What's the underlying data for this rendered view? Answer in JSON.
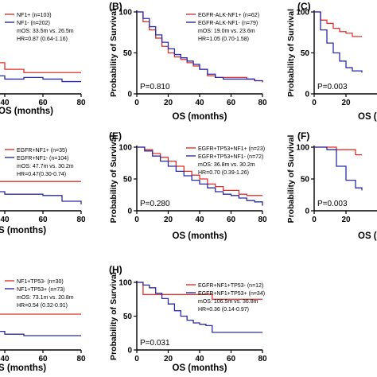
{
  "colors": {
    "red": "#e0302b",
    "blue": "#2b2ba8",
    "axis": "#000000"
  },
  "chart_data": [
    {
      "id": "left-top",
      "type": "line",
      "xlabel": "OS (months)",
      "ylabel": "",
      "xlim": [
        0,
        80
      ],
      "ylim": [
        0,
        100
      ],
      "xticks": [
        "40",
        "60",
        "80"
      ],
      "yticks": [],
      "legend_position": "top-right",
      "legend_lines": [
        "NF1+ (n=103)",
        "NF1- (n=202)"
      ],
      "stats_lines": [
        "mOS: 33.5m vs. 26.5m",
        "HR=0.87 (0.64-1.16)"
      ],
      "p_value": "",
      "series": [
        {
          "name": "NF1+ (n=103)",
          "color": "red",
          "x": [
            0,
            18,
            22,
            26,
            30,
            40,
            50,
            60,
            70,
            80
          ],
          "y": [
            100,
            60,
            50,
            44,
            38,
            30,
            26,
            26,
            26,
            26
          ]
        },
        {
          "name": "NF1- (n=202)",
          "color": "blue",
          "x": [
            0,
            18,
            22,
            26,
            30,
            40,
            50,
            60,
            70,
            80
          ],
          "y": [
            100,
            48,
            36,
            28,
            22,
            18,
            20,
            18,
            15,
            15
          ]
        }
      ]
    },
    {
      "id": "B",
      "panel_label": "(B)",
      "type": "line",
      "xlabel": "OS (months)",
      "ylabel": "Probability of Survival",
      "xlim": [
        0,
        80
      ],
      "ylim": [
        0,
        100
      ],
      "xticks": [
        "0",
        "20",
        "40",
        "60",
        "80"
      ],
      "yticks": [
        "0",
        "50",
        "100"
      ],
      "legend_position": "top-right",
      "legend_lines": [
        "EGFR-ALK-NF1+ (n=62)",
        "EGFR-ALK-NF1- (n=79)"
      ],
      "stats_lines": [
        "mOS: 19.0m vs. 23.6m",
        "HR=1.05 (0.70-1.58)"
      ],
      "p_value": "P=0.810",
      "series": [
        {
          "name": "EGFR-ALK-NF1+ (n=62)",
          "color": "red",
          "x": [
            0,
            4,
            8,
            12,
            16,
            20,
            24,
            28,
            32,
            36,
            40,
            45,
            50,
            55,
            60,
            65,
            70,
            75,
            80
          ],
          "y": [
            100,
            88,
            78,
            68,
            58,
            50,
            45,
            42,
            38,
            34,
            30,
            22,
            20,
            20,
            20,
            20,
            18,
            16,
            14
          ]
        },
        {
          "name": "EGFR-ALK-NF1- (n=79)",
          "color": "blue",
          "x": [
            0,
            4,
            8,
            12,
            16,
            20,
            24,
            28,
            32,
            36,
            40,
            45,
            50,
            55,
            60,
            65,
            70,
            75,
            80
          ],
          "y": [
            100,
            92,
            82,
            72,
            63,
            55,
            48,
            44,
            40,
            36,
            30,
            24,
            20,
            18,
            18,
            18,
            18,
            16,
            15
          ]
        }
      ]
    },
    {
      "id": "C",
      "panel_label": "(C)",
      "type": "line",
      "xlabel": "OS (",
      "ylabel": "Probability of Survival",
      "xlim": [
        0,
        80
      ],
      "ylim": [
        0,
        100
      ],
      "xticks": [
        "0",
        "20"
      ],
      "yticks": [
        "0",
        "50",
        "100"
      ],
      "p_value": "P=0.003",
      "series": [
        {
          "name": "",
          "color": "red",
          "x": [
            0,
            4,
            8,
            12,
            16,
            20,
            24,
            30
          ],
          "y": [
            100,
            90,
            86,
            80,
            76,
            74,
            70,
            70
          ]
        },
        {
          "name": "",
          "color": "blue",
          "x": [
            0,
            4,
            8,
            12,
            16,
            20,
            24,
            30
          ],
          "y": [
            100,
            78,
            62,
            50,
            40,
            32,
            28,
            26
          ]
        }
      ]
    },
    {
      "id": "left-middle",
      "type": "line",
      "xlabel": "S (months)",
      "ylabel": "",
      "xlim": [
        0,
        80
      ],
      "ylim": [
        0,
        100
      ],
      "xticks": [
        "40",
        "60",
        "80"
      ],
      "yticks": [],
      "legend_position": "top-right",
      "legend_lines": [
        "EGFR+NF1+ (n=35)",
        "EGFR+NF1- (n=104)"
      ],
      "stats_lines": [
        "mOS: 47.7m vs. 30.2m",
        "HR=0.47(0.30-0.74)"
      ],
      "p_value": "",
      "series": [
        {
          "name": "EGFR+NF1+ (n=35)",
          "color": "red",
          "x": [
            0,
            20,
            24,
            30,
            34,
            40,
            50,
            60,
            70,
            80
          ],
          "y": [
            100,
            70,
            62,
            54,
            46,
            46,
            46,
            46,
            46,
            46
          ]
        },
        {
          "name": "EGFR+NF1- (n=104)",
          "color": "blue",
          "x": [
            0,
            20,
            24,
            30,
            34,
            40,
            50,
            60,
            70,
            80
          ],
          "y": [
            100,
            52,
            42,
            36,
            30,
            26,
            26,
            24,
            15,
            10
          ]
        }
      ]
    },
    {
      "id": "E",
      "panel_label": "(E)",
      "type": "line",
      "xlabel": "OS (months)",
      "ylabel": "Probability of Survival",
      "xlim": [
        0,
        80
      ],
      "ylim": [
        0,
        100
      ],
      "xticks": [
        "0",
        "20",
        "40",
        "60",
        "80"
      ],
      "yticks": [
        "0",
        "50",
        "100"
      ],
      "legend_position": "top-right",
      "legend_lines": [
        "EGFR+TP53+NF1+ (n=23)",
        "EGFR+TP53+NF1- (n=72)"
      ],
      "stats_lines": [
        "mOS: 36.8m vs. 30.2m",
        "HR=0.70 (0.39-1.26)"
      ],
      "p_value": "P=0.280",
      "series": [
        {
          "name": "EGFR+TP53+NF1+ (n=23)",
          "color": "red",
          "x": [
            0,
            5,
            10,
            15,
            20,
            25,
            30,
            35,
            40,
            45,
            50,
            55,
            60,
            65,
            70,
            75,
            80
          ],
          "y": [
            100,
            96,
            90,
            84,
            78,
            70,
            62,
            56,
            50,
            42,
            38,
            32,
            32,
            26,
            24,
            24,
            24
          ]
        },
        {
          "name": "EGFR+TP53+NF1- (n=72)",
          "color": "blue",
          "x": [
            0,
            5,
            10,
            15,
            20,
            25,
            30,
            35,
            40,
            45,
            50,
            55,
            60,
            65,
            70,
            75,
            80
          ],
          "y": [
            100,
            94,
            86,
            78,
            70,
            62,
            55,
            48,
            42,
            36,
            30,
            26,
            24,
            20,
            16,
            14,
            8
          ]
        }
      ]
    },
    {
      "id": "F",
      "panel_label": "(F)",
      "type": "line",
      "xlabel": "OS (",
      "ylabel": "Probability of Survival",
      "xlim": [
        0,
        80
      ],
      "ylim": [
        0,
        100
      ],
      "xticks": [
        "0",
        "20"
      ],
      "yticks": [
        "0",
        "50",
        "100"
      ],
      "p_value": "P=0.003",
      "series": [
        {
          "name": "",
          "color": "red",
          "x": [
            0,
            8,
            14,
            20,
            26,
            30
          ],
          "y": [
            100,
            100,
            96,
            96,
            88,
            88
          ]
        },
        {
          "name": "",
          "color": "blue",
          "x": [
            0,
            8,
            14,
            20,
            26,
            30
          ],
          "y": [
            100,
            96,
            70,
            48,
            36,
            32
          ]
        }
      ]
    },
    {
      "id": "left-bottom",
      "type": "line",
      "xlabel": "S (months)",
      "ylabel": "",
      "xlim": [
        0,
        80
      ],
      "ylim": [
        0,
        100
      ],
      "xticks": [
        "40",
        "60",
        "80"
      ],
      "yticks": [],
      "legend_position": "top-right",
      "legend_lines": [
        "NF1+TP53- (n=30)",
        "NF1+TP53+ (n=73)"
      ],
      "stats_lines": [
        "mOS: 73.1m vs. 20.8m",
        "HR=0.54 (0.32-0.91)"
      ],
      "p_value": "",
      "series": [
        {
          "name": "NF1+TP53- (n=30)",
          "color": "red",
          "x": [
            0,
            20,
            30,
            40,
            50,
            60,
            70,
            80
          ],
          "y": [
            100,
            60,
            50,
            50,
            50,
            50,
            50,
            50
          ]
        },
        {
          "name": "NF1+TP53+ (n=73)",
          "color": "blue",
          "x": [
            0,
            20,
            30,
            40,
            50,
            60,
            70,
            80
          ],
          "y": [
            100,
            34,
            26,
            22,
            20,
            20,
            20,
            20
          ]
        }
      ]
    },
    {
      "id": "H",
      "panel_label": "(H)",
      "type": "line",
      "xlabel": "OS (months)",
      "ylabel": "Probability of Survival",
      "xlim": [
        0,
        80
      ],
      "ylim": [
        0,
        100
      ],
      "xticks": [
        "0",
        "20",
        "40",
        "60",
        "80"
      ],
      "yticks": [
        "0",
        "50",
        "100"
      ],
      "legend_position": "top-right",
      "legend_lines": [
        "EGFR+NF1+TP53- (n=12)",
        "EGFR+NF1+TP53+ (n=34)"
      ],
      "stats_lines": [
        "mOS: 106.5m vs. 36.8m",
        "HR=0.36 (0.14-0.97)"
      ],
      "p_value": "P=0.031",
      "series": [
        {
          "name": "EGFR+NF1+TP53- (n=12)",
          "color": "red",
          "x": [
            0,
            4,
            24,
            48,
            60,
            80
          ],
          "y": [
            100,
            82,
            82,
            75,
            75,
            75
          ]
        },
        {
          "name": "EGFR+NF1+TP53+ (n=34)",
          "color": "blue",
          "x": [
            0,
            4,
            8,
            12,
            16,
            20,
            24,
            28,
            32,
            36,
            40,
            44,
            48,
            60,
            80
          ],
          "y": [
            100,
            96,
            92,
            84,
            76,
            68,
            58,
            50,
            44,
            40,
            38,
            36,
            26,
            26,
            26
          ]
        }
      ]
    }
  ]
}
